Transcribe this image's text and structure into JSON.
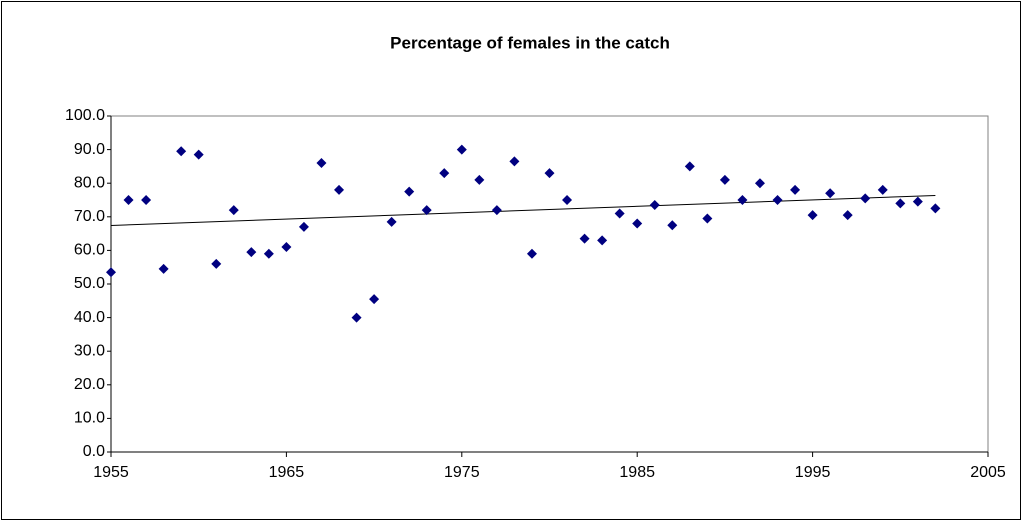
{
  "chart_data": {
    "type": "scatter",
    "title": "Percentage of females in the catch",
    "x": [
      1955,
      1956,
      1957,
      1958,
      1959,
      1960,
      1961,
      1962,
      1963,
      1964,
      1965,
      1966,
      1967,
      1968,
      1969,
      1970,
      1971,
      1972,
      1973,
      1974,
      1975,
      1976,
      1977,
      1978,
      1979,
      1980,
      1981,
      1982,
      1983,
      1984,
      1985,
      1986,
      1987,
      1988,
      1989,
      1990,
      1991,
      1992,
      1993,
      1994,
      1995,
      1996,
      1997,
      1998,
      1999,
      2000,
      2001,
      2002
    ],
    "values": [
      53.5,
      75,
      75,
      54.5,
      89.5,
      88.5,
      56,
      72,
      59.5,
      59,
      61,
      67,
      86,
      78,
      40,
      45.5,
      68.5,
      77.5,
      72,
      83,
      90,
      81,
      72,
      86.5,
      59,
      83,
      75,
      63.5,
      63,
      71,
      68,
      73.5,
      67.5,
      85,
      69.5,
      81,
      75,
      80,
      75,
      78,
      70.5,
      77,
      70.5,
      75.5,
      78,
      74,
      74.5,
      72.5
    ],
    "color": "#000080",
    "trendline": true,
    "xlim": [
      1955,
      2005
    ],
    "xticks": [
      1955,
      1965,
      1975,
      1985,
      1995,
      2005
    ],
    "ylim": [
      0,
      100
    ],
    "yticks": [
      {
        "value": 0,
        "label": "0.0"
      },
      {
        "value": 10,
        "label": "10.0"
      },
      {
        "value": 20,
        "label": "20.0"
      },
      {
        "value": 30,
        "label": "30.0"
      },
      {
        "value": 40,
        "label": "40.0"
      },
      {
        "value": 50,
        "label": "50.0"
      },
      {
        "value": 60,
        "label": "60.0"
      },
      {
        "value": 70,
        "label": "70.0"
      },
      {
        "value": 80,
        "label": "80.0"
      },
      {
        "value": 90,
        "label": "90.0"
      },
      {
        "value": 100,
        "label": "100.0"
      }
    ],
    "grid": false
  }
}
